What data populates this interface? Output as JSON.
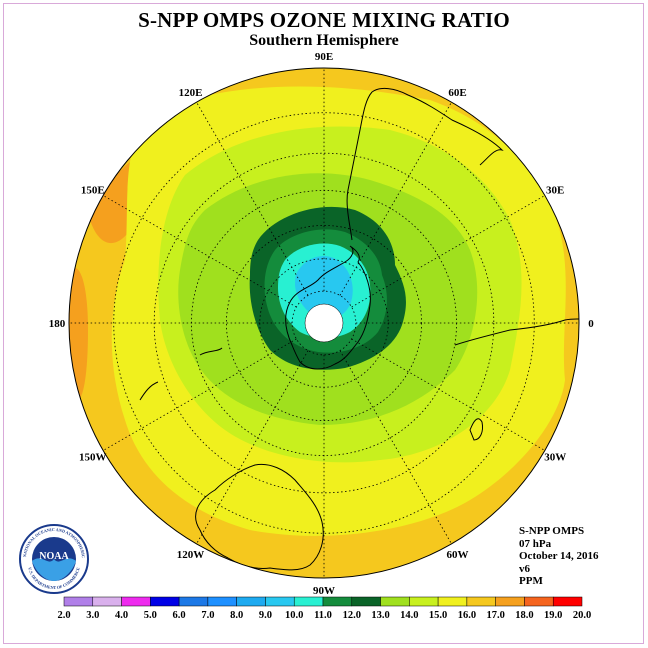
{
  "header": {
    "title": "S-NPP OMPS OZONE MIXING RATIO",
    "subtitle": "Southern Hemisphere"
  },
  "map": {
    "projection": "south-polar-stereographic",
    "longitude_labels": [
      {
        "name": "90W",
        "lon": -90
      },
      {
        "name": "60W",
        "lon": -60
      },
      {
        "name": "30W",
        "lon": -30
      },
      {
        "name": "0",
        "lon": 0
      },
      {
        "name": "30E",
        "lon": 30
      },
      {
        "name": "60E",
        "lon": 60
      },
      {
        "name": "90E",
        "lon": 90
      },
      {
        "name": "120E",
        "lon": 120
      },
      {
        "name": "150E",
        "lon": 150
      },
      {
        "name": "180",
        "lon": 180
      },
      {
        "name": "150W",
        "lon": -150
      },
      {
        "name": "120W",
        "lon": -120
      }
    ],
    "graticule_latitudes": [
      -80,
      -70,
      -60,
      -50,
      -40,
      -30
    ]
  },
  "info": {
    "instrument": "S-NPP OMPS",
    "level": "07 hPa",
    "date": "October 14, 2016",
    "version": "v6",
    "units": "PPM"
  },
  "logo": {
    "text": "NOAA",
    "ring_text": "NATIONAL OCEANIC AND ATMOSPHERIC ADMINISTRATION",
    "ring_text_bottom": "U.S. DEPARTMENT OF COMMERCE"
  },
  "colorbar": {
    "ticks": [
      "2.0",
      "3.0",
      "4.0",
      "5.0",
      "6.0",
      "7.0",
      "8.0",
      "9.0",
      "10.0",
      "11.0",
      "12.0",
      "13.0",
      "14.0",
      "15.0",
      "16.0",
      "17.0",
      "18.0",
      "19.0",
      "20.0"
    ],
    "colors": [
      "#b07fe8",
      "#d9b0ec",
      "#ee2aee",
      "#0000e6",
      "#1c78e6",
      "#1e90ff",
      "#1eaaf0",
      "#28c8f0",
      "#28f0d2",
      "#148c3c",
      "#0a6428",
      "#a0e01e",
      "#c8f01e",
      "#f0f01e",
      "#f5c81e",
      "#f5a01e",
      "#f5641e",
      "#ff0000",
      "#8b5a3c"
    ]
  },
  "colors": {
    "level_16": "#f5c81e",
    "level_17": "#f5a01e",
    "level_15": "#f0f01e",
    "level_14": "#c8f01e",
    "level_13": "#a0e01e",
    "level_12": "#0a6428",
    "level_11": "#148c3c",
    "level_10": "#28f0d2",
    "level_9": "#28c8f0"
  }
}
